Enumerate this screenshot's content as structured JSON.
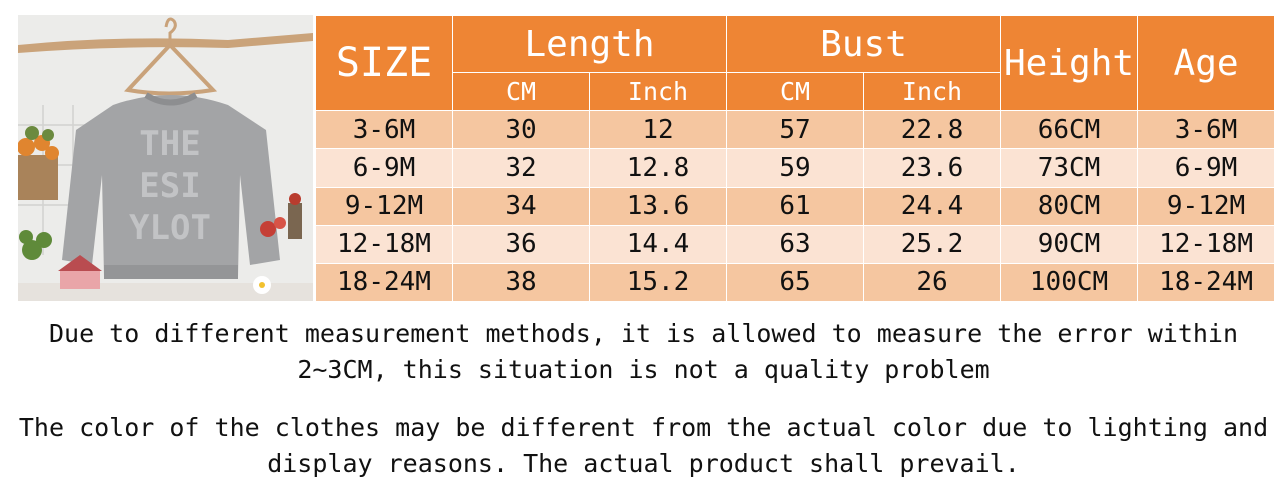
{
  "table": {
    "header": {
      "size": "SIZE",
      "length": "Length",
      "bust": "Bust",
      "height": "Height",
      "age": "Age",
      "length_cm": "CM",
      "length_inch": "Inch",
      "bust_cm": "CM",
      "bust_inch": "Inch"
    },
    "rows": [
      {
        "size": "3-6M",
        "length_cm": "30",
        "length_inch": "12",
        "bust_cm": "57",
        "bust_inch": "22.8",
        "height": "66CM",
        "age": "3-6M"
      },
      {
        "size": "6-9M",
        "length_cm": "32",
        "length_inch": "12.8",
        "bust_cm": "59",
        "bust_inch": "23.6",
        "height": "73CM",
        "age": "6-9M"
      },
      {
        "size": "9-12M",
        "length_cm": "34",
        "length_inch": "13.6",
        "bust_cm": "61",
        "bust_inch": "24.4",
        "height": "80CM",
        "age": "9-12M"
      },
      {
        "size": "12-18M",
        "length_cm": "36",
        "length_inch": "14.4",
        "bust_cm": "63",
        "bust_inch": "25.2",
        "height": "90CM",
        "age": "12-18M"
      },
      {
        "size": "18-24M",
        "length_cm": "38",
        "length_inch": "15.2",
        "bust_cm": "65",
        "bust_inch": "26",
        "height": "100CM",
        "age": "18-24M"
      }
    ]
  },
  "notes": {
    "measurement": "Due to different measurement methods, it is allowed to measure the error within\n2~3CM, this situation is not a quality problem",
    "color": "The color of the clothes may be different from the actual color due to lighting and\ndisplay reasons. The actual product shall prevail."
  },
  "photo": {
    "sweater_print": "THE ESI YLOT"
  },
  "colors": {
    "header": "#ee8534",
    "row_dark": "#f5c6a0",
    "row_light": "#fbe3d3"
  }
}
